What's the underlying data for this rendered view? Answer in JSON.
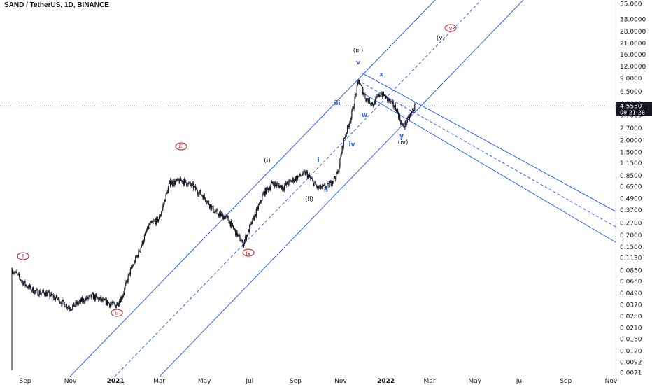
{
  "header": {
    "title": "SAND / TetherUS, 1D, BINANCE"
  },
  "chart_data": {
    "type": "candlestick",
    "title": "SAND / TetherUS, 1D, BINANCE",
    "y_scale": "log",
    "y_ticks": [
      "55.000",
      "38.0000",
      "28.0000",
      "21.0000",
      "16.0000",
      "12.0000",
      "9.0000",
      "6.5000",
      "4.9000",
      "3.7000",
      "2.7000",
      "2.0000",
      "1.5000",
      "1.1500",
      "0.8500",
      "0.6500",
      "0.4900",
      "0.3700",
      "0.2700",
      "0.2000",
      "0.1500",
      "0.1150",
      "0.0850",
      "0.0650",
      "0.0490",
      "0.0370",
      "0.0280",
      "0.0210",
      "0.0160",
      "0.0120",
      "0.0092",
      "0.0071"
    ],
    "x_ticks": [
      "Sep",
      "Nov",
      "2021",
      "Mar",
      "May",
      "Jul",
      "Sep",
      "Nov",
      "2022",
      "Mar",
      "May",
      "Jul",
      "Sep",
      "Nov"
    ],
    "last_price": {
      "value": "4.5550",
      "countdown": "09:21:28",
      "color": "#131722"
    },
    "approx_close_series": [
      {
        "date": "2020-08-15",
        "close": 0.085
      },
      {
        "date": "2020-09-01",
        "close": 0.06
      },
      {
        "date": "2020-09-15",
        "close": 0.05
      },
      {
        "date": "2020-10-01",
        "close": 0.048
      },
      {
        "date": "2020-10-15",
        "close": 0.042
      },
      {
        "date": "2020-11-01",
        "close": 0.034
      },
      {
        "date": "2020-11-15",
        "close": 0.04
      },
      {
        "date": "2020-12-01",
        "close": 0.045
      },
      {
        "date": "2020-12-15",
        "close": 0.04
      },
      {
        "date": "2021-01-01",
        "close": 0.036
      },
      {
        "date": "2021-01-10",
        "close": 0.045
      },
      {
        "date": "2021-01-20",
        "close": 0.08
      },
      {
        "date": "2021-02-01",
        "close": 0.13
      },
      {
        "date": "2021-02-15",
        "close": 0.25
      },
      {
        "date": "2021-03-01",
        "close": 0.3
      },
      {
        "date": "2021-03-15",
        "close": 0.7
      },
      {
        "date": "2021-04-01",
        "close": 0.75
      },
      {
        "date": "2021-04-15",
        "close": 0.65
      },
      {
        "date": "2021-05-01",
        "close": 0.5
      },
      {
        "date": "2021-05-15",
        "close": 0.35
      },
      {
        "date": "2021-06-01",
        "close": 0.3
      },
      {
        "date": "2021-06-22",
        "close": 0.16
      },
      {
        "date": "2021-07-05",
        "close": 0.28
      },
      {
        "date": "2021-07-20",
        "close": 0.55
      },
      {
        "date": "2021-08-01",
        "close": 0.7
      },
      {
        "date": "2021-08-15",
        "close": 0.64
      },
      {
        "date": "2021-09-01",
        "close": 0.8
      },
      {
        "date": "2021-09-15",
        "close": 0.9
      },
      {
        "date": "2021-10-01",
        "close": 0.62
      },
      {
        "date": "2021-10-15",
        "close": 0.65
      },
      {
        "date": "2021-10-28",
        "close": 0.9
      },
      {
        "date": "2021-11-05",
        "close": 2.0
      },
      {
        "date": "2021-11-15",
        "close": 3.5
      },
      {
        "date": "2021-11-25",
        "close": 8.4
      },
      {
        "date": "2021-12-05",
        "close": 5.5
      },
      {
        "date": "2021-12-15",
        "close": 4.8
      },
      {
        "date": "2021-12-25",
        "close": 6.3
      },
      {
        "date": "2022-01-05",
        "close": 5.2
      },
      {
        "date": "2022-01-15",
        "close": 4.3
      },
      {
        "date": "2022-01-24",
        "close": 2.7
      },
      {
        "date": "2022-02-01",
        "close": 3.4
      },
      {
        "date": "2022-02-09",
        "close": 4.555
      }
    ],
    "wave_labels_circled": [
      "i",
      "ii",
      "iii",
      "iv",
      "v"
    ],
    "wave_labels_parenthesized": [
      "(i)",
      "(ii)",
      "(iii)",
      "(iv)",
      "(v)"
    ],
    "wave_labels_blue": [
      "i",
      "ii",
      "iii",
      "iv",
      "v",
      "w",
      "x",
      "y"
    ],
    "grid": false,
    "colors": {
      "channel": "#2962ff",
      "candle": "#131722",
      "wave_circled": "#b71c1c",
      "wave_paren": "#131722",
      "wave_blue": "#2962ff",
      "axis_text": "#131722"
    }
  }
}
